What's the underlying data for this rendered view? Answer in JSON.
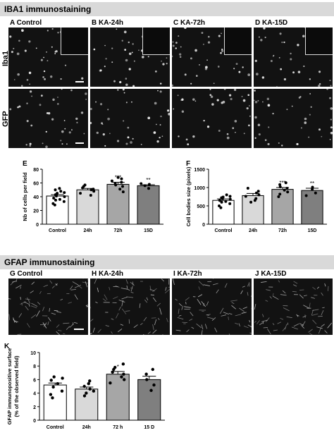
{
  "section1": {
    "title": "IBA1 immunostaining",
    "row_labels": [
      "Iba1",
      "GFP"
    ],
    "panels": [
      "A Control",
      "B KA-24h",
      "C KA-72h",
      "D KA-15D"
    ]
  },
  "section2": {
    "title": "GFAP immunostaining",
    "panels": [
      "G Control",
      "H KA-24h",
      "I KA-72h",
      "J KA-15D"
    ]
  },
  "colors": {
    "band": "#d9d9d9",
    "bar_control": "#ffffff",
    "bar_24h": "#d9d9d9",
    "bar_72h": "#a6a6a6",
    "bar_15d": "#7f7f7f"
  },
  "chart_data": [
    {
      "panel": "E",
      "type": "bar",
      "categories": [
        "Control",
        "24h",
        "72h",
        "15D"
      ],
      "values": [
        41,
        50,
        58,
        56
      ],
      "errors": [
        2,
        2,
        3,
        1.5
      ],
      "significance": [
        "",
        "",
        "***",
        "**"
      ],
      "ylabel": "Nb of cells per field",
      "ylim": [
        0,
        80
      ],
      "yticks": [
        0,
        20,
        40,
        60,
        80
      ],
      "points": [
        [
          28,
          30,
          33,
          35,
          36,
          38,
          40,
          41,
          43,
          45,
          46,
          48,
          50,
          52
        ],
        [
          42,
          45,
          48,
          50,
          51,
          53,
          55,
          57
        ],
        [
          47,
          51,
          55,
          57,
          59,
          61,
          63,
          66,
          68
        ],
        [
          52,
          56,
          58,
          59
        ]
      ]
    },
    {
      "panel": "F",
      "type": "bar",
      "categories": [
        "Control",
        "24h",
        "72h",
        "15D"
      ],
      "values": [
        650,
        780,
        950,
        920
      ],
      "errors": [
        40,
        60,
        50,
        60
      ],
      "significance": [
        "",
        "",
        "***",
        "**"
      ],
      "ylabel": "Cell bodies size (pixels)",
      "ylim": [
        0,
        1500
      ],
      "yticks": [
        0,
        500,
        1000,
        1500
      ],
      "points": [
        [
          450,
          500,
          560,
          600,
          620,
          650,
          680,
          700,
          720,
          740,
          760,
          800
        ],
        [
          600,
          650,
          700,
          760,
          800,
          850,
          900,
          980
        ],
        [
          750,
          820,
          880,
          930,
          980,
          1020,
          1080,
          1130
        ],
        [
          780,
          850,
          950,
          1010
        ]
      ]
    },
    {
      "panel": "K",
      "type": "bar",
      "categories": [
        "Control",
        "24h",
        "72 h",
        "15 D"
      ],
      "values": [
        5.2,
        4.6,
        6.8,
        6.0
      ],
      "errors": [
        0.3,
        0.3,
        0.4,
        0.5
      ],
      "significance": [
        "",
        "",
        "*",
        ""
      ],
      "ylabel": "GFAP immunopositive surface\n(% of the observed field)",
      "ylim": [
        0,
        10
      ],
      "yticks": [
        0,
        2,
        4,
        6,
        8,
        10
      ],
      "points": [
        [
          3.3,
          3.8,
          4.3,
          4.9,
          5.4,
          5.9,
          6.2,
          6.4
        ],
        [
          3.6,
          4.0,
          4.3,
          4.6,
          5.0,
          5.4,
          5.8
        ],
        [
          5.5,
          6.0,
          6.4,
          6.8,
          7.1,
          7.5,
          7.8,
          8.3
        ],
        [
          4.4,
          5.2,
          6.0,
          6.8,
          7.5
        ]
      ]
    }
  ]
}
